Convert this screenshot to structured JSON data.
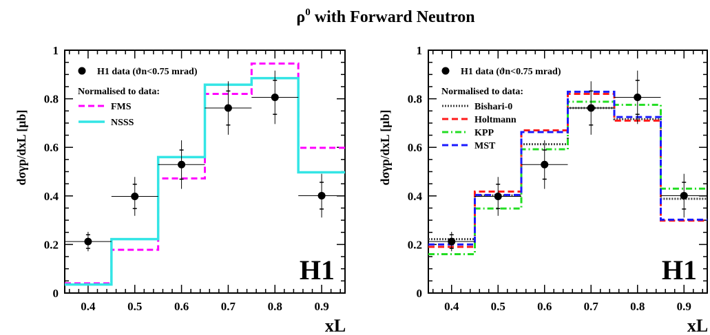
{
  "figure": {
    "title_main": "ρ",
    "title_sup": "0",
    "title_rest": " with Forward Neutron"
  },
  "chart_data": [
    {
      "type": "step",
      "panel": "left",
      "ylabel": "dσγp/dxL [μb]",
      "xlabel": "xL",
      "xlim": [
        0.35,
        0.95
      ],
      "ylim": [
        0,
        1
      ],
      "x_ticks": [
        "0.4",
        "0.5",
        "0.6",
        "0.7",
        "0.8",
        "0.9"
      ],
      "y_ticks": [
        "0",
        "0.2",
        "0.4",
        "0.6",
        "0.8",
        "1"
      ],
      "brand": "H1",
      "data_legend": "H1 data (ϑn<0.75 mrad)",
      "normalised_label": "Normalised to data:",
      "data": {
        "name": "H1 data",
        "x": [
          0.4,
          0.5,
          0.6,
          0.7,
          0.8,
          0.9
        ],
        "y": [
          0.212,
          0.398,
          0.529,
          0.762,
          0.806,
          0.401
        ],
        "xerr": 0.05,
        "yerr_stat": [
          0.028,
          0.05,
          0.06,
          0.07,
          0.07,
          0.055
        ],
        "yerr_tot": [
          0.04,
          0.08,
          0.1,
          0.11,
          0.11,
          0.09
        ]
      },
      "bin_edges": [
        0.35,
        0.45,
        0.55,
        0.65,
        0.75,
        0.85,
        0.95
      ],
      "series": [
        {
          "name": "FMS",
          "values": [
            0.04,
            0.178,
            0.472,
            0.82,
            0.945,
            0.598
          ],
          "color": "#ff00ff",
          "style": "dashed"
        },
        {
          "name": "NSSS",
          "values": [
            0.035,
            0.222,
            0.56,
            0.858,
            0.885,
            0.497
          ],
          "color": "#33e5e5",
          "style": "solid"
        }
      ]
    },
    {
      "type": "step",
      "panel": "right",
      "ylabel": "dσγp/dxL [μb]",
      "xlabel": "xL",
      "xlim": [
        0.35,
        0.95
      ],
      "ylim": [
        0,
        1
      ],
      "x_ticks": [
        "0.4",
        "0.5",
        "0.6",
        "0.7",
        "0.8",
        "0.9"
      ],
      "y_ticks": [
        "0",
        "0.2",
        "0.4",
        "0.6",
        "0.8",
        "1"
      ],
      "brand": "H1",
      "data_legend": "H1 data (ϑn<0.75 mrad)",
      "normalised_label": "Normalised to data:",
      "data": {
        "name": "H1 data",
        "x": [
          0.4,
          0.5,
          0.6,
          0.7,
          0.8,
          0.9
        ],
        "y": [
          0.212,
          0.398,
          0.529,
          0.762,
          0.806,
          0.401
        ],
        "xerr": 0.05,
        "yerr_stat": [
          0.028,
          0.05,
          0.06,
          0.07,
          0.07,
          0.055
        ],
        "yerr_tot": [
          0.04,
          0.08,
          0.1,
          0.11,
          0.11,
          0.09
        ]
      },
      "bin_edges": [
        0.35,
        0.45,
        0.55,
        0.65,
        0.75,
        0.85,
        0.95
      ],
      "series": [
        {
          "name": "Bishari-0",
          "values": [
            0.222,
            0.402,
            0.613,
            0.762,
            0.716,
            0.388
          ],
          "color": "#444444",
          "style": "dotted"
        },
        {
          "name": "Holtmann",
          "values": [
            0.19,
            0.418,
            0.67,
            0.82,
            0.71,
            0.298
          ],
          "color": "#ff1a1a",
          "style": "dashed"
        },
        {
          "name": "KPP",
          "values": [
            0.16,
            0.348,
            0.592,
            0.788,
            0.775,
            0.43
          ],
          "color": "#22dd22",
          "style": "dashdot"
        },
        {
          "name": "MST",
          "values": [
            0.2,
            0.404,
            0.663,
            0.829,
            0.725,
            0.302
          ],
          "color": "#1a1aff",
          "style": "dashed"
        }
      ]
    }
  ]
}
